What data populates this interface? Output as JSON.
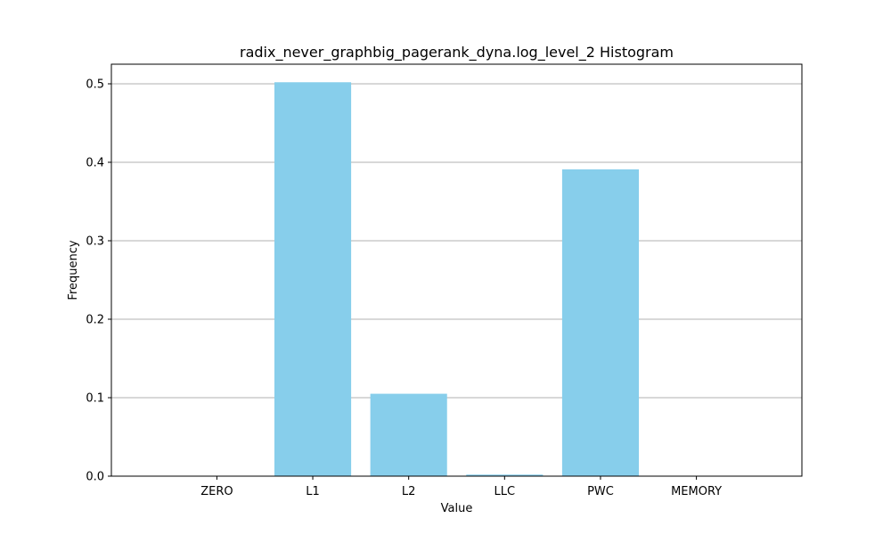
{
  "chart_data": {
    "type": "bar",
    "title": "radix_never_graphbig_pagerank_dyna.log_level_2 Histogram",
    "xlabel": "Value",
    "ylabel": "Frequency",
    "categories": [
      "ZERO",
      "L1",
      "L2",
      "LLC",
      "PWC",
      "MEMORY"
    ],
    "values": [
      0.0,
      0.502,
      0.105,
      0.002,
      0.391,
      0.0
    ],
    "ylim": [
      0,
      0.525
    ],
    "yticks": [
      0.0,
      0.1,
      0.2,
      0.3,
      0.4,
      0.5
    ],
    "ytick_labels": [
      "0.0",
      "0.1",
      "0.2",
      "0.3",
      "0.4",
      "0.5"
    ],
    "grid": "y",
    "legend": "none",
    "bar_color": "#87ceeb"
  }
}
